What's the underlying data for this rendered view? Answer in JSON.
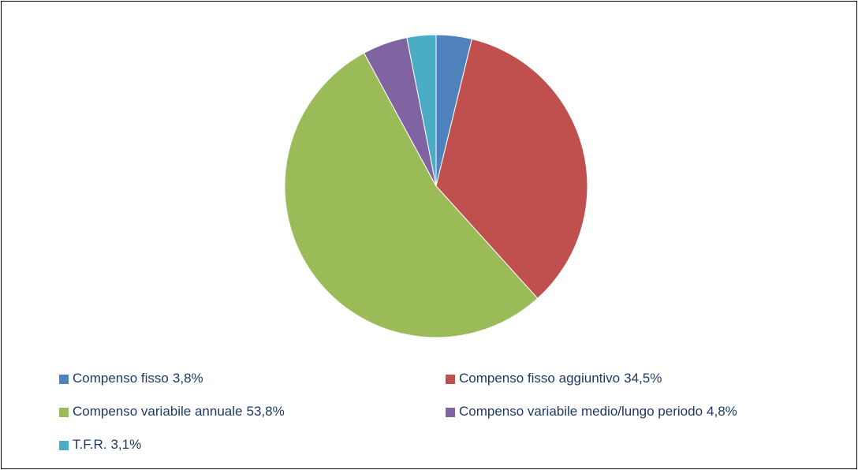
{
  "chart_data": {
    "type": "pie",
    "categories": [
      "Compenso fisso",
      "Compenso fisso aggiuntivo",
      "Compenso variabile annuale",
      "Compenso variabile medio/lungo periodo",
      "T.F.R."
    ],
    "values": [
      3.8,
      34.5,
      53.8,
      4.8,
      3.1
    ],
    "value_labels": [
      "3,8%",
      "34,5%",
      "53,8%",
      "4,8%",
      "3,1%"
    ],
    "colors": [
      "#4f81bd",
      "#c0504d",
      "#9bbb59",
      "#8064a2",
      "#4bacc6"
    ],
    "legend": "bottom"
  }
}
